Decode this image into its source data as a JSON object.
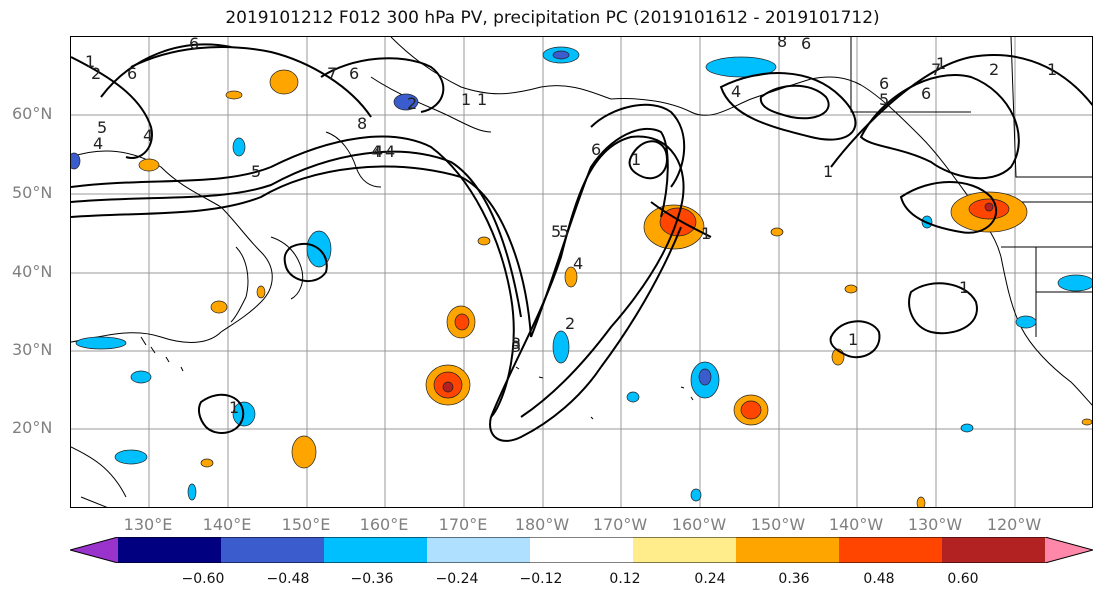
{
  "title": "2019101212 F012 300 hPa PV, precipitation PC (2019101612 - 2019101712)",
  "lat_labels": [
    "60°N",
    "50°N",
    "40°N",
    "30°N",
    "20°N"
  ],
  "lon_labels": [
    "130°E",
    "140°E",
    "150°E",
    "160°E",
    "170°E",
    "180°W",
    "170°W",
    "160°W",
    "150°W",
    "140°W",
    "130°W",
    "120°W"
  ],
  "colorbar": {
    "ticks": [
      "−0.60",
      "−0.48",
      "−0.36",
      "−0.24",
      "−0.12",
      "0.12",
      "0.24",
      "0.36",
      "0.48",
      "0.60"
    ],
    "colors": [
      "#9933cc",
      "#000080",
      "#3a5ccc",
      "#00bfff",
      "#b0e0ff",
      "#ffffff",
      "#ffec8b",
      "#ffa500",
      "#ff4500",
      "#b22222",
      "#ff88aa"
    ]
  },
  "contour_labels": [
    "6",
    "6",
    "4",
    "5",
    "4",
    "2",
    "1",
    "7",
    "6",
    "5",
    "8",
    "4",
    "1",
    "1",
    "4",
    "2",
    "6",
    "1",
    "3",
    "6",
    "8",
    "1",
    "6",
    "5",
    "7",
    "4",
    "2",
    "1",
    "1",
    "1",
    "3",
    "5",
    "4",
    "2",
    "1",
    "1",
    "4",
    "5",
    "6",
    "1"
  ]
}
